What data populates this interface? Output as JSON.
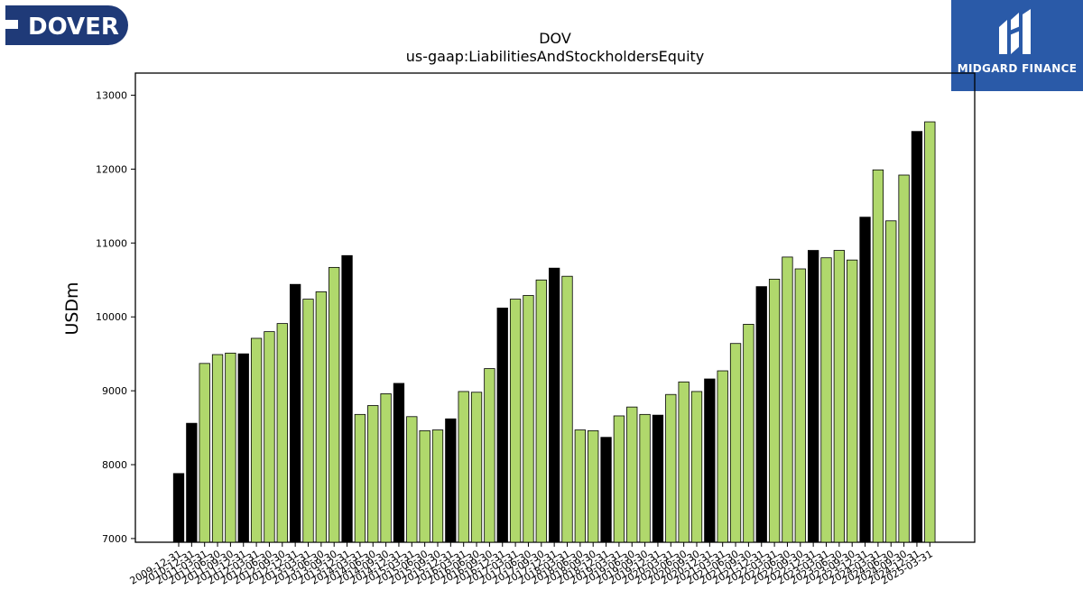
{
  "logos": {
    "dover_text": "DOVER",
    "midgard_text": "MIDGARD FINANCE"
  },
  "colors": {
    "highlight": "#000000",
    "bar": "#b0d86c",
    "midgard_bg": "#2a5aa8",
    "dover_bg": "#1f3a78"
  },
  "chart_data": {
    "type": "bar",
    "title": "DOV",
    "subtitle": "us-gaap:LiabilitiesAndStockholdersEquity",
    "ylabel": "USDm",
    "xlabel": "",
    "ylim": [
      6950,
      13300
    ],
    "yticks": [
      7000,
      8000,
      9000,
      10000,
      11000,
      12000,
      13000
    ],
    "legend": "none",
    "grid": false,
    "categories": [
      "2009-12-31",
      "2010-12-31",
      "2011-03-31",
      "2011-06-30",
      "2011-09-30",
      "2011-12-31",
      "2012-03-31",
      "2012-06-30",
      "2012-09-30",
      "2012-12-31",
      "2013-03-31",
      "2013-06-30",
      "2013-09-30",
      "2013-12-31",
      "2014-03-31",
      "2014-06-30",
      "2014-09-30",
      "2014-12-31",
      "2015-03-31",
      "2015-06-30",
      "2015-09-30",
      "2015-12-31",
      "2016-03-31",
      "2016-06-30",
      "2016-09-30",
      "2016-12-31",
      "2017-03-31",
      "2017-06-30",
      "2017-09-30",
      "2017-12-31",
      "2018-03-31",
      "2018-06-30",
      "2018-09-30",
      "2018-12-31",
      "2019-03-31",
      "2019-06-30",
      "2019-09-30",
      "2019-12-31",
      "2020-03-31",
      "2020-06-30",
      "2020-09-30",
      "2020-12-31",
      "2021-03-31",
      "2021-06-30",
      "2021-09-30",
      "2021-12-31",
      "2022-03-31",
      "2022-06-30",
      "2022-09-30",
      "2022-12-31",
      "2023-03-31",
      "2023-06-30",
      "2023-09-30",
      "2023-12-31",
      "2024-03-31",
      "2024-06-30",
      "2024-09-30",
      "2024-12-31",
      "2025-03-31"
    ],
    "values": [
      7880,
      8560,
      9370,
      9490,
      9510,
      9500,
      9710,
      9800,
      9910,
      10440,
      10240,
      10340,
      10670,
      10830,
      8680,
      8800,
      8960,
      9100,
      8650,
      8460,
      8470,
      8620,
      8990,
      8980,
      9300,
      10120,
      10240,
      10290,
      10500,
      10660,
      10550,
      8470,
      8460,
      8370,
      8660,
      8780,
      8680,
      8670,
      8950,
      9120,
      8990,
      9160,
      9270,
      9640,
      9900,
      10410,
      10510,
      10810,
      10650,
      10900,
      10800,
      10900,
      10770,
      11350,
      11990,
      11300,
      11920,
      12510,
      12640
    ],
    "highlight": [
      true,
      true,
      false,
      false,
      false,
      true,
      false,
      false,
      false,
      true,
      false,
      false,
      false,
      true,
      false,
      false,
      false,
      true,
      false,
      false,
      false,
      true,
      false,
      false,
      false,
      true,
      false,
      false,
      false,
      true,
      false,
      false,
      false,
      true,
      false,
      false,
      false,
      true,
      false,
      false,
      false,
      true,
      false,
      false,
      false,
      true,
      false,
      false,
      false,
      true,
      false,
      false,
      false,
      true,
      false,
      false,
      false,
      true,
      false
    ]
  }
}
